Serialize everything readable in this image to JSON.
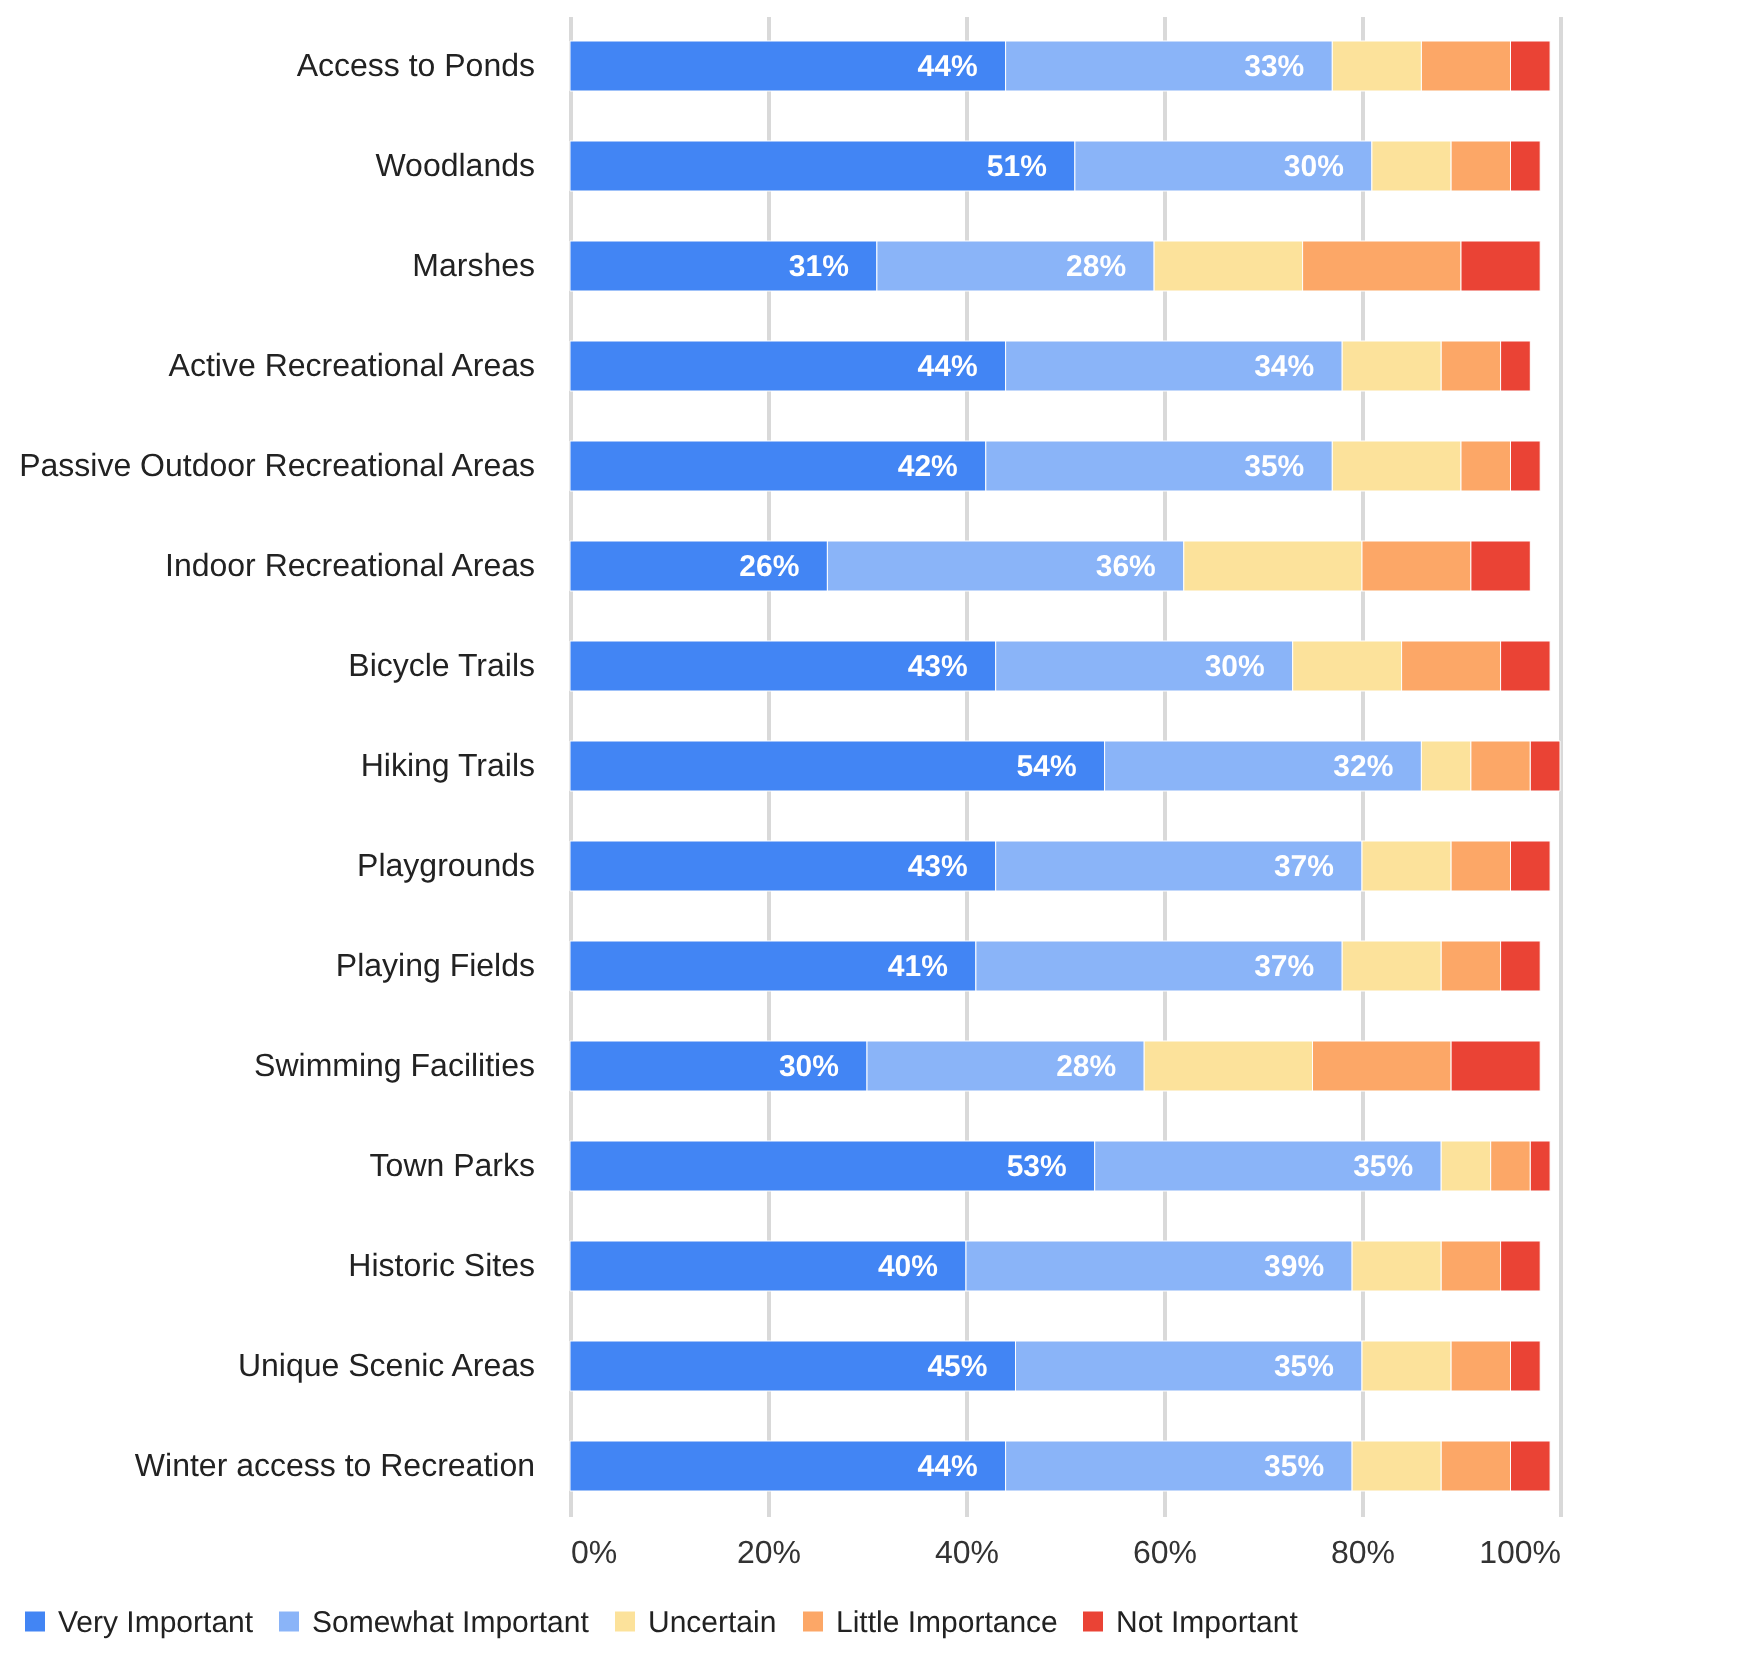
{
  "chart_data": {
    "type": "bar",
    "orientation": "horizontal",
    "stacked": true,
    "grid": "x",
    "legend": "bottom",
    "categories": [
      "Access to Ponds",
      "Woodlands",
      "Marshes",
      "Active Recreational Areas",
      "Passive Outdoor Recreational Areas",
      "Indoor Recreational Areas",
      "Bicycle Trails",
      "Hiking Trails",
      "Playgrounds",
      "Playing Fields",
      "Swimming Facilities",
      "Town Parks",
      "Historic Sites",
      "Unique Scenic Areas",
      "Winter access to Recreation"
    ],
    "xlim": [
      0,
      100
    ],
    "xticks": [
      {
        "value": 0,
        "label": "0%"
      },
      {
        "value": 20,
        "label": "20%"
      },
      {
        "value": 40,
        "label": "40%"
      },
      {
        "value": 60,
        "label": "60%"
      },
      {
        "value": 80,
        "label": "80%"
      },
      {
        "value": 100,
        "label": "100%"
      }
    ],
    "series": [
      {
        "name": "Very Important",
        "color": "#4285f4",
        "values": [
          44,
          51,
          31,
          44,
          42,
          26,
          43,
          54,
          43,
          41,
          30,
          53,
          40,
          45,
          44
        ],
        "value_labels": [
          "44%",
          "51%",
          "31%",
          "44%",
          "42%",
          "26%",
          "43%",
          "54%",
          "43%",
          "41%",
          "30%",
          "53%",
          "40%",
          "45%",
          "44%"
        ]
      },
      {
        "name": "Somewhat Important",
        "color": "#8ab4f8",
        "values": [
          33,
          30,
          28,
          34,
          35,
          36,
          30,
          32,
          37,
          37,
          28,
          35,
          39,
          35,
          35
        ],
        "value_labels": [
          "33%",
          "30%",
          "28%",
          "34%",
          "35%",
          "36%",
          "30%",
          "32%",
          "37%",
          "37%",
          "28%",
          "35%",
          "39%",
          "35%",
          "35%"
        ]
      },
      {
        "name": "Uncertain",
        "color": "#fce29b",
        "values": [
          9,
          8,
          15,
          10,
          13,
          18,
          11,
          5,
          9,
          10,
          17,
          5,
          9,
          9,
          9
        ]
      },
      {
        "name": "Little Importance",
        "color": "#fca767",
        "values": [
          9,
          6,
          16,
          6,
          5,
          11,
          10,
          6,
          6,
          6,
          14,
          4,
          6,
          6,
          7
        ]
      },
      {
        "name": "Not Important",
        "color": "#ea4335",
        "values": [
          4,
          3,
          8,
          3,
          3,
          6,
          5,
          3,
          4,
          4,
          9,
          2,
          4,
          3,
          4
        ]
      }
    ]
  }
}
